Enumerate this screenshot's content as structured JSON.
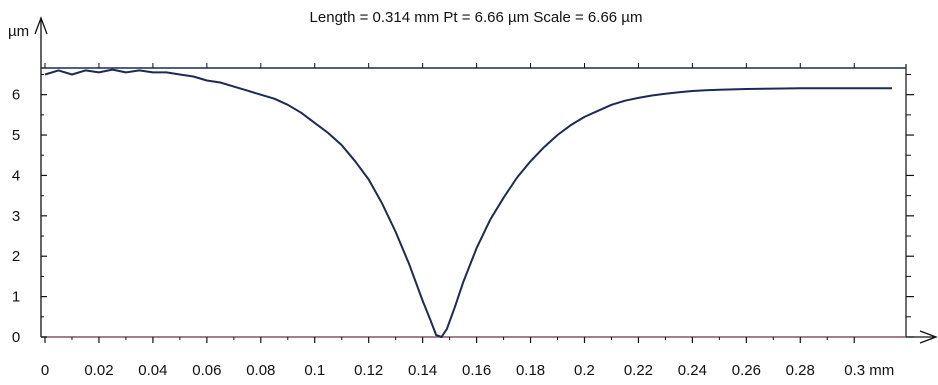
{
  "chart_data": {
    "type": "line",
    "title": "Length = 0.314 mm  Pt = 6.66 µm  Scale = 6.66 µm",
    "ylabel": "µm",
    "xunit": "mm",
    "xlim": [
      0,
      0.314
    ],
    "ylim": [
      0,
      6.66
    ],
    "x_ticks": [
      0,
      0.02,
      0.04,
      0.06,
      0.08,
      0.1,
      0.12,
      0.14,
      0.16,
      0.18,
      0.2,
      0.22,
      0.24,
      0.26,
      0.28,
      0.3
    ],
    "x_tick_labels": [
      "0",
      "0.02",
      "0.04",
      "0.06",
      "0.08",
      "0.1",
      "0.12",
      "0.14",
      "0.16",
      "0.18",
      "0.2",
      "0.22",
      "0.24",
      "0.26",
      "0.28",
      "0.3 mm"
    ],
    "y_ticks": [
      0,
      1,
      2,
      3,
      4,
      5,
      6
    ],
    "y_tick_labels": [
      "0",
      "1",
      "2",
      "3",
      "4",
      "5",
      "6"
    ],
    "reference_lines": [
      6.66,
      0
    ],
    "grid": false,
    "series": [
      {
        "color": "#1c2a55",
        "x": [
          0,
          0.005,
          0.01,
          0.015,
          0.02,
          0.025,
          0.03,
          0.035,
          0.04,
          0.045,
          0.05,
          0.055,
          0.06,
          0.065,
          0.07,
          0.075,
          0.08,
          0.085,
          0.09,
          0.095,
          0.1,
          0.105,
          0.11,
          0.115,
          0.12,
          0.125,
          0.13,
          0.135,
          0.14,
          0.143,
          0.145,
          0.147,
          0.149,
          0.152,
          0.155,
          0.16,
          0.165,
          0.17,
          0.175,
          0.18,
          0.185,
          0.19,
          0.195,
          0.2,
          0.205,
          0.21,
          0.215,
          0.22,
          0.225,
          0.23,
          0.235,
          0.24,
          0.245,
          0.25,
          0.26,
          0.27,
          0.28,
          0.29,
          0.3,
          0.31,
          0.314
        ],
        "y": [
          6.5,
          6.6,
          6.5,
          6.6,
          6.55,
          6.62,
          6.55,
          6.6,
          6.55,
          6.55,
          6.5,
          6.45,
          6.35,
          6.3,
          6.2,
          6.1,
          6.0,
          5.9,
          5.75,
          5.55,
          5.3,
          5.05,
          4.75,
          4.35,
          3.9,
          3.3,
          2.6,
          1.8,
          0.9,
          0.4,
          0.05,
          0.0,
          0.2,
          0.75,
          1.35,
          2.2,
          2.9,
          3.45,
          3.95,
          4.35,
          4.7,
          5.0,
          5.25,
          5.45,
          5.6,
          5.75,
          5.85,
          5.92,
          5.98,
          6.02,
          6.06,
          6.09,
          6.11,
          6.12,
          6.14,
          6.15,
          6.16,
          6.16,
          6.16,
          6.16,
          6.16
        ]
      }
    ]
  }
}
